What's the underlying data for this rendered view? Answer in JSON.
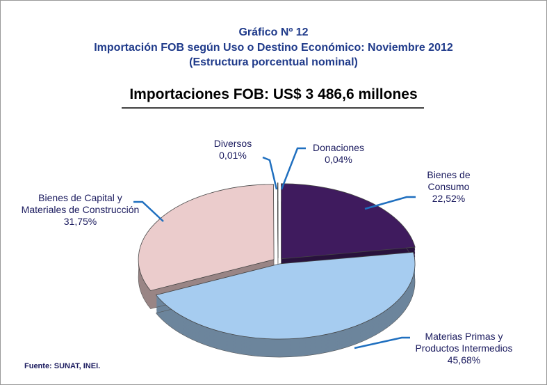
{
  "chart_data": {
    "type": "pie",
    "title": "Gráfico Nº 12",
    "subtitle": [
      "Importación FOB según Uso o Destino Económico: Noviembre 2012",
      "(Estructura porcentual nominal)"
    ],
    "heading": "Importaciones FOB: US$ 3 486,6 millones",
    "source": "Fuente: SUNAT, INEI.",
    "categories": [
      "Bienes de Consumo",
      "Materias Primas y Productos Intermedios",
      "Bienes de Capital y Materiales de Construcción",
      "Diversos",
      "Donaciones"
    ],
    "values": [
      22.52,
      45.68,
      31.75,
      0.01,
      0.04
    ],
    "value_labels": [
      "22,52%",
      "45,68%",
      "31,75%",
      "0,01%",
      "0,04%"
    ],
    "colors": [
      "#3f1b5e",
      "#a6ccf0",
      "#ebcccc",
      "#ffffff",
      "#ffffff"
    ]
  }
}
